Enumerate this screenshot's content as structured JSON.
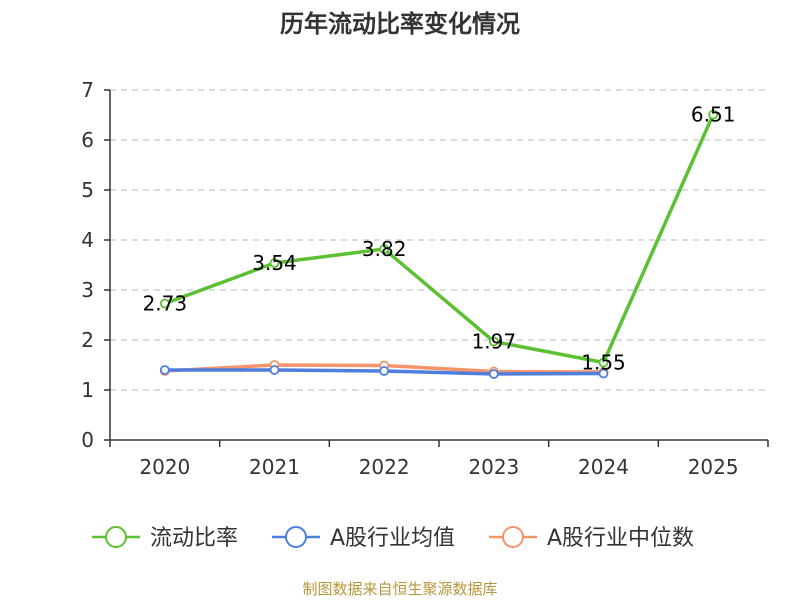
{
  "chart_data": {
    "type": "line",
    "title": "历年流动比率变化情况",
    "categories": [
      "2020",
      "2021",
      "2022",
      "2023",
      "2024",
      "2025"
    ],
    "ylim": [
      0,
      7
    ],
    "yticks": [
      0,
      1,
      2,
      3,
      4,
      5,
      6,
      7
    ],
    "grid": "horizontal-dashed",
    "legend_position": "bottom",
    "series": [
      {
        "name": "流动比率",
        "color": "#5cc132",
        "values": [
          2.73,
          3.54,
          3.82,
          1.97,
          1.55,
          6.51
        ],
        "labels": [
          "2.73",
          "3.54",
          "3.82",
          "1.97",
          "1.55",
          "6.51"
        ]
      },
      {
        "name": "A股行业均值",
        "color": "#4e7fdc",
        "values": [
          1.4,
          1.4,
          1.38,
          1.32,
          1.33,
          null
        ]
      },
      {
        "name": "A股行业中位数",
        "color": "#f3946a",
        "values": [
          1.38,
          1.5,
          1.49,
          1.37,
          1.36,
          null
        ]
      }
    ],
    "source": "制图数据来自恒生聚源数据库",
    "source_color": "#b8963c"
  }
}
